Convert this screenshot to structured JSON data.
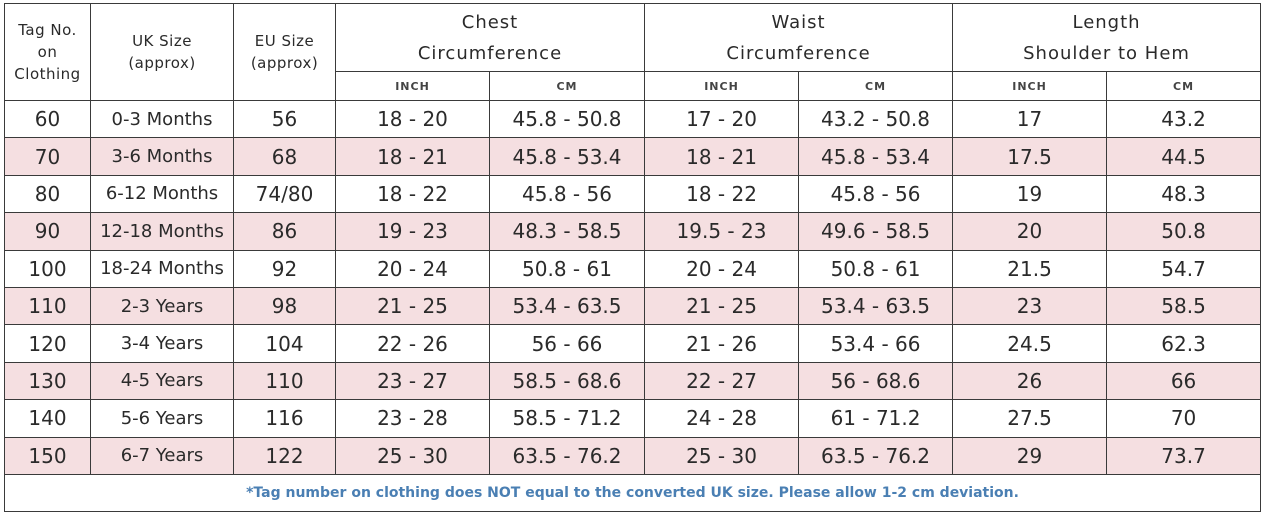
{
  "table": {
    "headers": [
      [
        "Tag No.",
        "on",
        "Clothing"
      ],
      [
        "UK Size",
        "(approx)"
      ],
      [
        "EU Size",
        "(approx)"
      ]
    ],
    "groups": [
      [
        "Chest",
        "Circumference"
      ],
      [
        "Waist",
        "Circumference"
      ],
      [
        "Length",
        "Shoulder to Hem"
      ]
    ],
    "subheaders": [
      "INCH",
      "CM",
      "INCH",
      "CM",
      "INCH",
      "CM"
    ],
    "rows": [
      [
        "60",
        "0-3 Months",
        "56",
        "18 - 20",
        "45.8 - 50.8",
        "17 - 20",
        "43.2 - 50.8",
        "17",
        "43.2"
      ],
      [
        "70",
        "3-6 Months",
        "68",
        "18 - 21",
        "45.8 - 53.4",
        "18 - 21",
        "45.8 - 53.4",
        "17.5",
        "44.5"
      ],
      [
        "80",
        "6-12 Months",
        "74/80",
        "18 - 22",
        "45.8 - 56",
        "18 - 22",
        "45.8 - 56",
        "19",
        "48.3"
      ],
      [
        "90",
        "12-18 Months",
        "86",
        "19 - 23",
        "48.3 - 58.5",
        "19.5 - 23",
        "49.6 - 58.5",
        "20",
        "50.8"
      ],
      [
        "100",
        "18-24 Months",
        "92",
        "20 - 24",
        "50.8 - 61",
        "20 - 24",
        "50.8 - 61",
        "21.5",
        "54.7"
      ],
      [
        "110",
        "2-3 Years",
        "98",
        "21 - 25",
        "53.4 - 63.5",
        "21 - 25",
        "53.4 - 63.5",
        "23",
        "58.5"
      ],
      [
        "120",
        "3-4 Years",
        "104",
        "22 - 26",
        "56 - 66",
        "21 - 26",
        "53.4 - 66",
        "24.5",
        "62.3"
      ],
      [
        "130",
        "4-5 Years",
        "110",
        "23 - 27",
        "58.5 - 68.6",
        "22 - 27",
        "56 - 68.6",
        "26",
        "66"
      ],
      [
        "140",
        "5-6 Years",
        "116",
        "23 - 28",
        "58.5 - 71.2",
        "24 - 28",
        "61 - 71.2",
        "27.5",
        "70"
      ],
      [
        "150",
        "6-7 Years",
        "122",
        "25 - 30",
        "63.5 - 76.2",
        "25 - 30",
        "63.5 - 76.2",
        "29",
        "73.7"
      ]
    ],
    "footnote": "*Tag number on clothing does NOT equal to the converted UK size. Please allow 1-2 cm deviation."
  }
}
